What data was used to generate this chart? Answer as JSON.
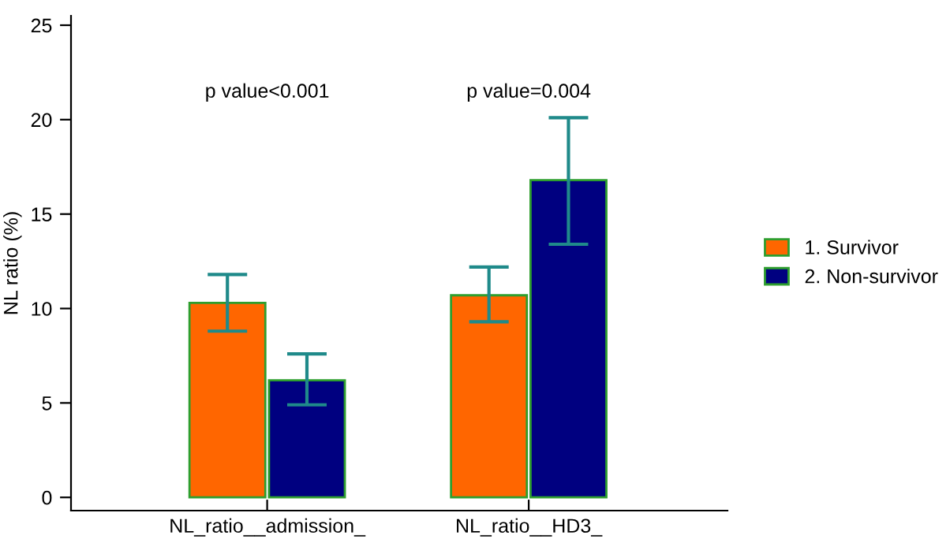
{
  "chart_data": {
    "type": "bar",
    "ylabel": "NL ratio (%)",
    "categories": [
      "NL_ratio__admission_",
      "NL_ratio__HD3_"
    ],
    "series": [
      {
        "name": "1. Survivor",
        "color": "#ff6600",
        "values": [
          10.3,
          10.7
        ],
        "errors": [
          [
            8.8,
            11.8
          ],
          [
            9.3,
            12.2
          ]
        ]
      },
      {
        "name": "2. Non-survivor",
        "color": "#000080",
        "values": [
          6.2,
          16.8
        ],
        "errors": [
          [
            4.9,
            7.6
          ],
          [
            13.4,
            20.1
          ]
        ]
      }
    ],
    "ylim": [
      -0.7,
      25.5
    ],
    "yticks": [
      0,
      5,
      10,
      15,
      20,
      25
    ],
    "grid": false,
    "legend": "right",
    "annotations": [
      "p value<0.001",
      "p value=0.004"
    ]
  }
}
